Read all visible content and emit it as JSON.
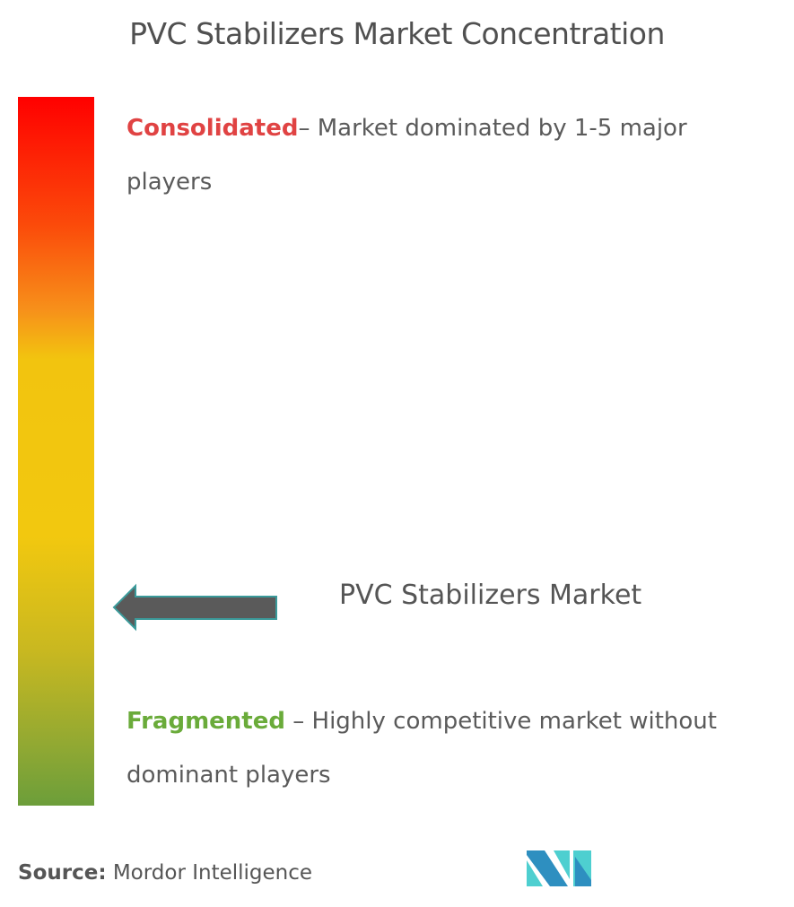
{
  "title": "PVC Stabilizers Market Concentration",
  "scale": {
    "top_label": "Consolidated",
    "top_text": "– Market dominated by 1-5 major players",
    "bottom_label": "Fragmented",
    "bottom_text": " – Highly competitive market without dominant players",
    "colors": {
      "top": "#ff0000",
      "middle": "#f2c80f",
      "bottom": "#6c9e3a"
    }
  },
  "marker": {
    "label": "PVC Stabilizers Market",
    "icon": "left-arrow-icon",
    "position_fraction_from_bottom": 0.27
  },
  "source": {
    "label": "Source:",
    "value": " Mordor Intelligence"
  },
  "logo": {
    "icon": "mordor-intelligence-logo-icon",
    "colors": [
      "#2e8fc0",
      "#4ecfd0"
    ]
  }
}
